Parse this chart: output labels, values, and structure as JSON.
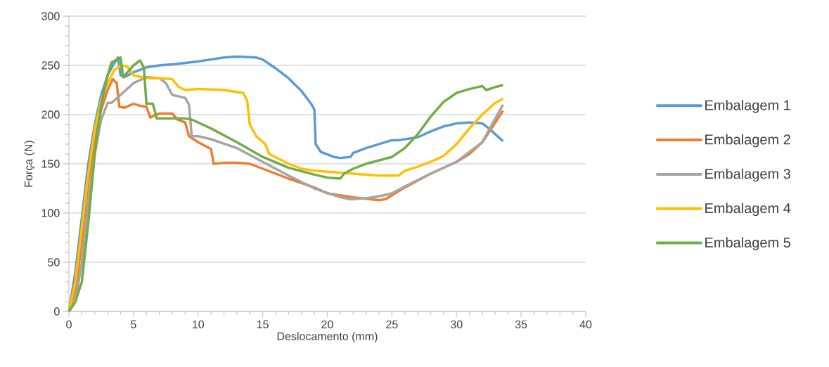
{
  "chart_data": {
    "type": "line",
    "xlabel": "Deslocamento (mm)",
    "ylabel": "Força (N)",
    "xlim": [
      0,
      40
    ],
    "ylim": [
      0,
      300
    ],
    "xticks": [
      0,
      5,
      10,
      15,
      20,
      25,
      30,
      35,
      40
    ],
    "yticks": [
      0,
      50,
      100,
      150,
      200,
      250,
      300
    ],
    "grid": "y",
    "legend": "right",
    "marker": "none",
    "line_style": "solid",
    "series": [
      {
        "name": "Embalagem 1",
        "color": "#5b9bd5",
        "x": [
          0,
          0.5,
          1,
          1.5,
          2,
          2.5,
          3,
          3.5,
          3.8,
          4,
          4.3,
          5,
          6,
          7,
          8,
          10,
          12,
          13,
          14.5,
          15,
          16,
          17,
          18,
          18.8,
          19,
          19.1,
          19.5,
          20.5,
          21,
          21.8,
          22,
          23,
          24,
          25,
          25.5,
          27,
          28,
          29,
          30,
          31,
          32,
          32.5,
          33.6
        ],
        "values": [
          0,
          40,
          95,
          150,
          190,
          220,
          240,
          252,
          258,
          240,
          238,
          243,
          248,
          250,
          251,
          254,
          258,
          259,
          258,
          256,
          247,
          237,
          224,
          210,
          205,
          170,
          162,
          157,
          156,
          157,
          161,
          166,
          170,
          174,
          174,
          177,
          183,
          188,
          191,
          192,
          191,
          186,
          173
        ]
      },
      {
        "name": "Embalagem 2",
        "color": "#ed7d31",
        "x": [
          0,
          0.5,
          1,
          1.5,
          2,
          2.5,
          3,
          3.4,
          3.7,
          3.9,
          4.3,
          5,
          5.5,
          6,
          6.3,
          6.6,
          7,
          8,
          8.4,
          9,
          9.3,
          10,
          11,
          11.2,
          12,
          13,
          14,
          15,
          17,
          19,
          20,
          22,
          24,
          24.5,
          25,
          26,
          28,
          30,
          31,
          32,
          33,
          33.6
        ],
        "values": [
          0,
          20,
          70,
          130,
          175,
          205,
          225,
          236,
          232,
          208,
          207,
          211,
          209,
          208,
          197,
          199,
          201,
          201,
          195,
          192,
          178,
          172,
          165,
          150,
          151,
          151,
          150,
          145,
          135,
          126,
          120,
          116,
          113,
          114,
          118,
          126,
          140,
          152,
          160,
          172,
          192,
          204
        ]
      },
      {
        "name": "Embalagem 3",
        "color": "#a5a5a5",
        "x": [
          0,
          0.5,
          1,
          1.5,
          2,
          2.5,
          3,
          3.3,
          4,
          5,
          6,
          7,
          7.5,
          8,
          9,
          9.3,
          9.5,
          10,
          11,
          13,
          15,
          17,
          19,
          21,
          21.8,
          23,
          24,
          25,
          26,
          28,
          30,
          31,
          32,
          33,
          33.6
        ],
        "values": [
          0,
          10,
          50,
          110,
          160,
          195,
          212,
          212,
          220,
          232,
          238,
          237,
          232,
          220,
          217,
          210,
          178,
          178,
          175,
          166,
          152,
          138,
          125,
          116,
          114,
          115,
          117,
          120,
          127,
          140,
          152,
          162,
          172,
          196,
          210
        ]
      },
      {
        "name": "Embalagem 4",
        "color": "#ffc000",
        "x": [
          0,
          0.5,
          1,
          1.5,
          2,
          2.5,
          3,
          3.5,
          4,
          4.5,
          5,
          6,
          7,
          8,
          8.5,
          9,
          10,
          12,
          13.5,
          13.8,
          14,
          14.5,
          15.2,
          15.5,
          17,
          18,
          19,
          20,
          22,
          24,
          25.5,
          26,
          27,
          28,
          29,
          30,
          31,
          32,
          33,
          33.6
        ],
        "values": [
          0,
          30,
          85,
          140,
          185,
          215,
          232,
          245,
          250,
          249,
          240,
          237,
          237,
          236,
          228,
          225,
          226,
          225,
          222,
          214,
          190,
          178,
          170,
          160,
          150,
          145,
          143,
          142,
          140,
          138,
          138,
          143,
          147,
          152,
          158,
          170,
          186,
          200,
          212,
          216
        ]
      },
      {
        "name": "Embalagem 5",
        "color": "#70ad47",
        "x": [
          0,
          0.5,
          1,
          1.5,
          2,
          2.5,
          3,
          3.3,
          3.6,
          4,
          4.2,
          4.6,
          5,
          5.5,
          5.8,
          6,
          6.5,
          6.8,
          7,
          8,
          9,
          9.5,
          11,
          13,
          15,
          17,
          19,
          20,
          21,
          21.3,
          22,
          23,
          25,
          26,
          27,
          28,
          29,
          30,
          31,
          32,
          32.3,
          33,
          33.6
        ],
        "values": [
          0,
          10,
          30,
          90,
          160,
          210,
          240,
          253,
          255,
          258,
          238,
          244,
          250,
          255,
          248,
          211,
          211,
          196,
          196,
          196,
          196,
          195,
          186,
          172,
          157,
          146,
          139,
          136,
          135,
          140,
          145,
          150,
          157,
          166,
          180,
          198,
          213,
          222,
          226,
          229,
          225,
          228,
          230
        ]
      }
    ]
  }
}
